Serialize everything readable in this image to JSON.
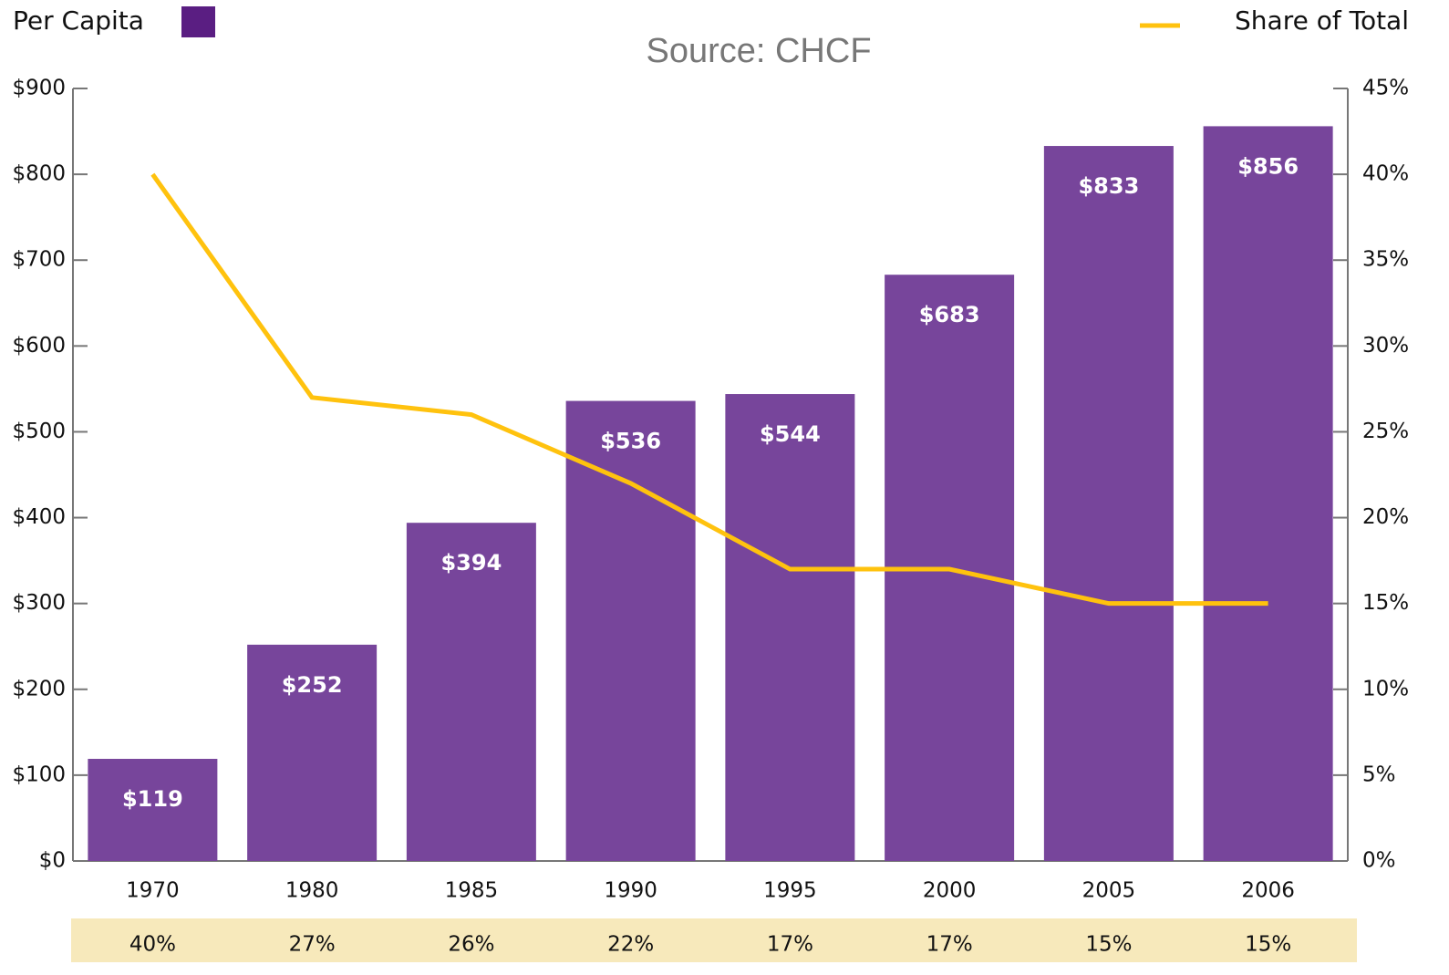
{
  "chart_data": {
    "type": "bar-line",
    "subtitle": "Source: CHCF",
    "categories": [
      "1970",
      "1980",
      "1985",
      "1990",
      "1995",
      "2000",
      "2005",
      "2006"
    ],
    "series": [
      {
        "name": "Per Capita",
        "type": "bar",
        "color": "#77459b",
        "legend_color": "#5a1e82",
        "values": [
          119,
          252,
          394,
          536,
          544,
          683,
          833,
          856
        ],
        "value_labels": [
          "$119",
          "$252",
          "$394",
          "$536",
          "$544",
          "$683",
          "$833",
          "$856"
        ]
      },
      {
        "name": "Share of Total",
        "type": "line",
        "axis": "y2",
        "color": "#ffc20e",
        "values": [
          40,
          27,
          26,
          22,
          17,
          17,
          15,
          15
        ],
        "value_labels": [
          "40%",
          "27%",
          "26%",
          "22%",
          "17%",
          "17%",
          "15%",
          "15%"
        ]
      }
    ],
    "ylim": [
      0,
      900
    ],
    "yticks": [
      {
        "value": 0,
        "label": "$0"
      },
      {
        "value": 100,
        "label": "$100"
      },
      {
        "value": 200,
        "label": "$200"
      },
      {
        "value": 300,
        "label": "$300"
      },
      {
        "value": 400,
        "label": "$400"
      },
      {
        "value": 500,
        "label": "$500"
      },
      {
        "value": 600,
        "label": "$600"
      },
      {
        "value": 700,
        "label": "$700"
      },
      {
        "value": 800,
        "label": "$800"
      },
      {
        "value": 900,
        "label": "$900"
      }
    ],
    "y2lim": [
      0,
      45
    ],
    "y2ticks": [
      {
        "value": 0,
        "label": "0%"
      },
      {
        "value": 5,
        "label": "5%"
      },
      {
        "value": 10,
        "label": "10%"
      },
      {
        "value": 15,
        "label": "15%"
      },
      {
        "value": 20,
        "label": "20%"
      },
      {
        "value": 25,
        "label": "25%"
      },
      {
        "value": 30,
        "label": "30%"
      },
      {
        "value": 35,
        "label": "35%"
      },
      {
        "value": 40,
        "label": "40%"
      },
      {
        "value": 45,
        "label": "45%"
      }
    ]
  }
}
